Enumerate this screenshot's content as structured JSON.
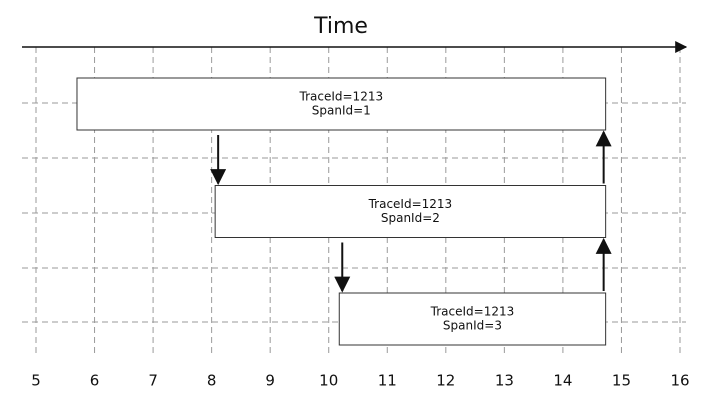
{
  "chart_data": {
    "type": "timeline",
    "title": "Time",
    "xlim": [
      5,
      16
    ],
    "xticks": [
      5,
      6,
      7,
      8,
      9,
      10,
      11,
      12,
      13,
      14,
      15,
      16
    ],
    "spans": [
      {
        "lines": [
          "TraceId=1213",
          "SpanId=1"
        ],
        "start": 5.7,
        "end": 14.73
      },
      {
        "lines": [
          "TraceId=1213",
          "SpanId=2"
        ],
        "start": 8.06,
        "end": 14.73
      },
      {
        "lines": [
          "TraceId=1213",
          "SpanId=3"
        ],
        "start": 10.18,
        "end": 14.73
      }
    ],
    "grid": true
  }
}
